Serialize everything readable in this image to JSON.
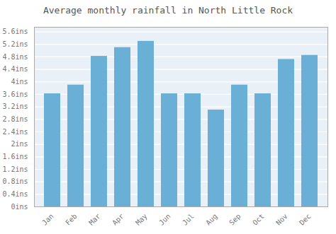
{
  "chart_data": {
    "type": "bar",
    "title": "Average monthly rainfall in North Little Rock",
    "categories": [
      "Jan",
      "Feb",
      "Mar",
      "Apr",
      "May",
      "Jun",
      "Jul",
      "Aug",
      "Sep",
      "Oct",
      "Nov",
      "Dec"
    ],
    "values": [
      3.62,
      3.9,
      4.82,
      5.1,
      5.3,
      3.62,
      3.62,
      3.1,
      3.9,
      3.62,
      4.72,
      4.85
    ],
    "color": "#6aafd6",
    "ylim": [
      0,
      5.75
    ],
    "yticks": [
      {
        "value": 0,
        "label": "0ins"
      },
      {
        "value": 0.4,
        "label": "0.4ins"
      },
      {
        "value": 0.8,
        "label": "0.8ins"
      },
      {
        "value": 1.2,
        "label": "1.2ins"
      },
      {
        "value": 1.6,
        "label": "1.6ins"
      },
      {
        "value": 2.0,
        "label": "2ins"
      },
      {
        "value": 2.4,
        "label": "2.4ins"
      },
      {
        "value": 2.8,
        "label": "2.8ins"
      },
      {
        "value": 3.2,
        "label": "3.2ins"
      },
      {
        "value": 3.6,
        "label": "3.6ins"
      },
      {
        "value": 4.0,
        "label": "4ins"
      },
      {
        "value": 4.4,
        "label": "4.4ins"
      },
      {
        "value": 4.8,
        "label": "4.8ins"
      },
      {
        "value": 5.2,
        "label": "5.2ins"
      },
      {
        "value": 5.6,
        "label": "5.6ins"
      }
    ],
    "grid": true
  }
}
